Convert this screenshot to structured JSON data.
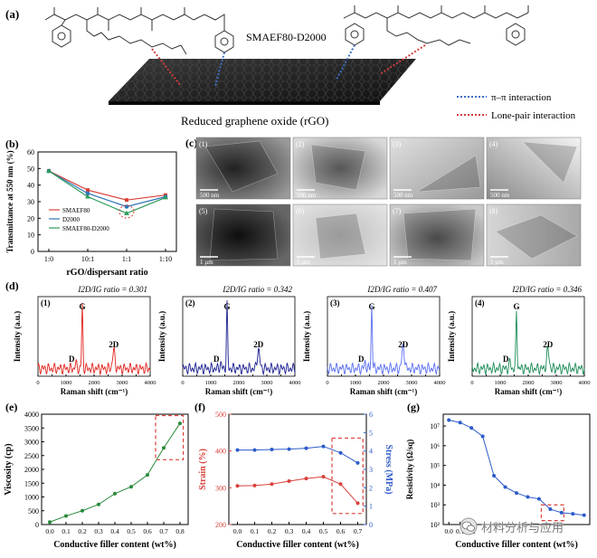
{
  "panel_a": {
    "letter": "(a)",
    "polymer_label": "SMAEF80-D2000",
    "substrate_label": "Reduced graphene oxide (rGO)",
    "legend": [
      {
        "label": "π–π interaction",
        "color": "#3b6fc4"
      },
      {
        "label": "Lone-pair interaction",
        "color": "#d23c3c"
      }
    ]
  },
  "panel_b": {
    "letter": "(b)"
  },
  "panel_c": {
    "letter": "(c)",
    "images": [
      {
        "tag": "(1)",
        "scale": "500 nm"
      },
      {
        "tag": "(2)",
        "scale": "500 nm"
      },
      {
        "tag": "(3)",
        "scale": "500 nm"
      },
      {
        "tag": "(4)",
        "scale": "500 nm"
      },
      {
        "tag": "(5)",
        "scale": "1 µm"
      },
      {
        "tag": "(6)",
        "scale": "1 µm"
      },
      {
        "tag": "(7)",
        "scale": "1 µm"
      },
      {
        "tag": "(8)",
        "scale": "1 µm"
      }
    ]
  },
  "panel_d": {
    "letter": "(d)",
    "ylabel": "Intensity (a.u.)",
    "xlabel": "Raman shift (cm⁻¹)",
    "peak_g": "G",
    "peak_2d": "2D",
    "peak_d": "D",
    "xticks": [
      "0",
      "500",
      "1000",
      "1500",
      "2000",
      "2500",
      "3000",
      "3500",
      "4000"
    ],
    "spectra": [
      {
        "tag": "(1)",
        "ratio_text": "I2D/IG ratio = 0.301",
        "color": "#e0241d"
      },
      {
        "tag": "(2)",
        "ratio_text": "I2D/IG ratio = 0.342",
        "color": "#1a1f8f"
      },
      {
        "tag": "(3)",
        "ratio_text": "I2D/IG ratio = 0.407",
        "color": "#5b6ff0"
      },
      {
        "tag": "(4)",
        "ratio_text": "I2D/IG ratio = 0.346",
        "color": "#1a8a55"
      }
    ]
  },
  "panel_e": {
    "letter": "(e)"
  },
  "panel_f": {
    "letter": "(f)"
  },
  "panel_g": {
    "letter": "(g)"
  },
  "watermark": "材料分析与应用",
  "chart_data": [
    {
      "id": "b",
      "type": "line",
      "title": "",
      "ylabel": "Transmittance at 550 nm (%)",
      "xlabel": "rGO/dispersant ratio",
      "categories": [
        "1:0",
        "10:1",
        "1:1",
        "1:10"
      ],
      "ylim": [
        0,
        60
      ],
      "yticks": [
        0,
        10,
        20,
        30,
        40,
        50,
        60
      ],
      "series": [
        {
          "name": "SMAEF80",
          "color": "#d9413a",
          "values": [
            48.5,
            37,
            31,
            34
          ]
        },
        {
          "name": "D2000",
          "color": "#2f74b8",
          "values": [
            48.5,
            35,
            27,
            33
          ]
        },
        {
          "name": "SMAEF80-D2000",
          "color": "#2e9c5a",
          "values": [
            48.5,
            33,
            23,
            32.5
          ]
        }
      ],
      "legend": "bottom-left"
    },
    {
      "id": "e",
      "type": "line",
      "ylabel": "Viscosity (cp)",
      "xlabel": "Conductive filler content (wt%)",
      "x": [
        0.0,
        0.1,
        0.2,
        0.3,
        0.4,
        0.5,
        0.6,
        0.7,
        0.8
      ],
      "xticks": [
        "0.0",
        "0.1",
        "0.2",
        "0.3",
        "0.4",
        "0.5",
        "0.6",
        "0.7",
        "0.8"
      ],
      "ylim": [
        0,
        4000
      ],
      "yticks": [
        0,
        500,
        1000,
        1500,
        2000,
        2500,
        3000,
        3500,
        4000
      ],
      "series": [
        {
          "color": "#2a8a3a",
          "values": [
            90,
            310,
            500,
            730,
            1120,
            1370,
            1800,
            2780,
            3670
          ]
        }
      ]
    },
    {
      "id": "f",
      "type": "line",
      "xlabel": "Conductive filler content (wt%)",
      "ylabel_left": "Strain (%)",
      "ylabel_right": "Stress (MPa)",
      "x": [
        0.0,
        0.1,
        0.2,
        0.3,
        0.4,
        0.5,
        0.6,
        0.7
      ],
      "xticks": [
        "0.0",
        "0.1",
        "0.2",
        "0.3",
        "0.4",
        "0.5",
        "0.6",
        "0.7"
      ],
      "ylim_left": [
        200,
        500
      ],
      "yticks_left": [
        200,
        300,
        400,
        500
      ],
      "ylim_right": [
        0,
        6
      ],
      "yticks_right": [
        0,
        1,
        2,
        3,
        4,
        5,
        6
      ],
      "series": [
        {
          "axis": "left",
          "color": "#d9413a",
          "values": [
            305,
            306,
            310,
            318,
            325,
            330,
            310,
            258
          ]
        },
        {
          "axis": "right",
          "color": "#2c5bc9",
          "values": [
            4.05,
            4.05,
            4.08,
            4.1,
            4.15,
            4.25,
            3.9,
            3.35
          ]
        }
      ]
    },
    {
      "id": "g",
      "type": "line",
      "xlabel": "Conductive filler content (wt%)",
      "ylabel": "Resistivity (Ω/sq)",
      "yscale": "log",
      "x": [
        0.0,
        0.1,
        0.2,
        0.3,
        0.4,
        0.5,
        0.6,
        0.7,
        0.8,
        0.9,
        1.0,
        1.1,
        1.2
      ],
      "xticks": [
        "0.0",
        "0.1",
        "0.2"
      ],
      "ytick_exponents": [
        2,
        3,
        4,
        5,
        6,
        7
      ],
      "series": [
        {
          "color": "#2c5bc9",
          "values": [
            20000000,
            15000000,
            8000000,
            3000000,
            30000,
            8000,
            4000,
            2500,
            2000,
            600,
            400,
            350,
            300
          ]
        }
      ]
    }
  ]
}
